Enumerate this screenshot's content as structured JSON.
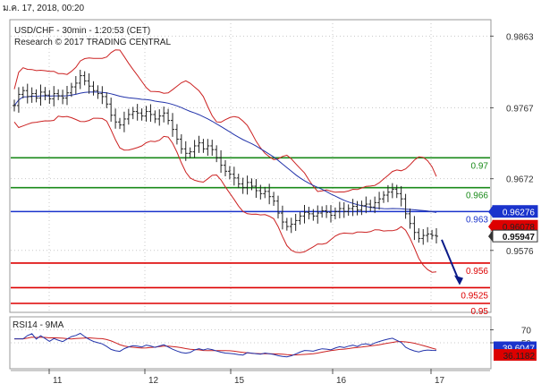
{
  "header": {
    "timestamp": "ม.ค. 17, 2018, 00:20"
  },
  "colors": {
    "background": "#ffffff",
    "price_bars": "#222222",
    "bollinger": "#cc2222",
    "moving_average": "#2233aa",
    "support_resistance_green": "#1a8a1a",
    "pivot_blue": "#1a33cc",
    "support_red": "#dd0000",
    "forecast_arrow": "#0a1a88",
    "rsi": "#2233aa",
    "rsi_ma": "#cc2222"
  },
  "chart_data": [
    {
      "type": "candlestick",
      "title": "USD/CHF - 30min - 1:20:53 (CET)",
      "subtitle": "Research © 2017 TRADING CENTRAL",
      "ylim": [
        0.9493,
        0.9885
      ],
      "y_ticks": [
        "0.9863",
        "0.9767",
        "0.9672",
        "0.9576"
      ],
      "x_ticks": [
        "11",
        "12",
        "15",
        "16",
        "17"
      ],
      "levels": [
        {
          "label": "0.97",
          "value": 0.97,
          "color": "#1a8a1a"
        },
        {
          "label": "0.966",
          "value": 0.966,
          "color": "#1a8a1a"
        },
        {
          "label": "0.963",
          "value": 0.9628,
          "color": "#1a33cc"
        },
        {
          "label": "0.956",
          "value": 0.9559,
          "color": "#dd0000"
        },
        {
          "label": "0.9525",
          "value": 0.9526,
          "color": "#dd0000"
        },
        {
          "label": "0.95",
          "value": 0.9505,
          "color": "#dd0000"
        }
      ],
      "price_boxes": [
        {
          "label": "0.96276",
          "bg": "#1a33cc",
          "fg": "#ffffff"
        },
        {
          "label": "0.96078",
          "bg": "#dd0000",
          "fg": "#222222"
        },
        {
          "label": "0.95947",
          "bg": "#ffffff",
          "fg": "#111111"
        }
      ],
      "close": [
        0.977,
        0.9785,
        0.979,
        0.9782,
        0.9786,
        0.978,
        0.9788,
        0.9784,
        0.9779,
        0.9786,
        0.9783,
        0.978,
        0.9787,
        0.9795,
        0.98,
        0.981,
        0.9803,
        0.9796,
        0.979,
        0.9786,
        0.9782,
        0.9772,
        0.9757,
        0.9748,
        0.9744,
        0.9752,
        0.9758,
        0.9762,
        0.976,
        0.9756,
        0.9762,
        0.9758,
        0.9752,
        0.9756,
        0.976,
        0.975,
        0.9738,
        0.9725,
        0.9712,
        0.9706,
        0.9708,
        0.9716,
        0.972,
        0.9712,
        0.9716,
        0.9711,
        0.97,
        0.969,
        0.9682,
        0.9678,
        0.9673,
        0.9665,
        0.966,
        0.9667,
        0.9662,
        0.9656,
        0.9652,
        0.9655,
        0.9648,
        0.9642,
        0.9626,
        0.9614,
        0.9608,
        0.9611,
        0.9616,
        0.9622,
        0.9627,
        0.9625,
        0.9622,
        0.9626,
        0.9629,
        0.9627,
        0.9623,
        0.9628,
        0.9632,
        0.9628,
        0.9632,
        0.9635,
        0.963,
        0.9636,
        0.9638,
        0.9634,
        0.964,
        0.9645,
        0.965,
        0.9654,
        0.9658,
        0.9652,
        0.9645,
        0.9625,
        0.9612,
        0.96,
        0.9592,
        0.9596,
        0.9598,
        0.9596,
        0.9595
      ],
      "rsi": {
        "label": "RSI14 - 9MA",
        "y_ticks": [
          "70",
          "50"
        ],
        "value_labels": [
          {
            "label": "39.6047",
            "bg": "#1a33cc",
            "fg": "#ffffff"
          },
          {
            "label": "36.1182",
            "bg": "#dd0000",
            "fg": "#222222"
          }
        ]
      }
    }
  ]
}
